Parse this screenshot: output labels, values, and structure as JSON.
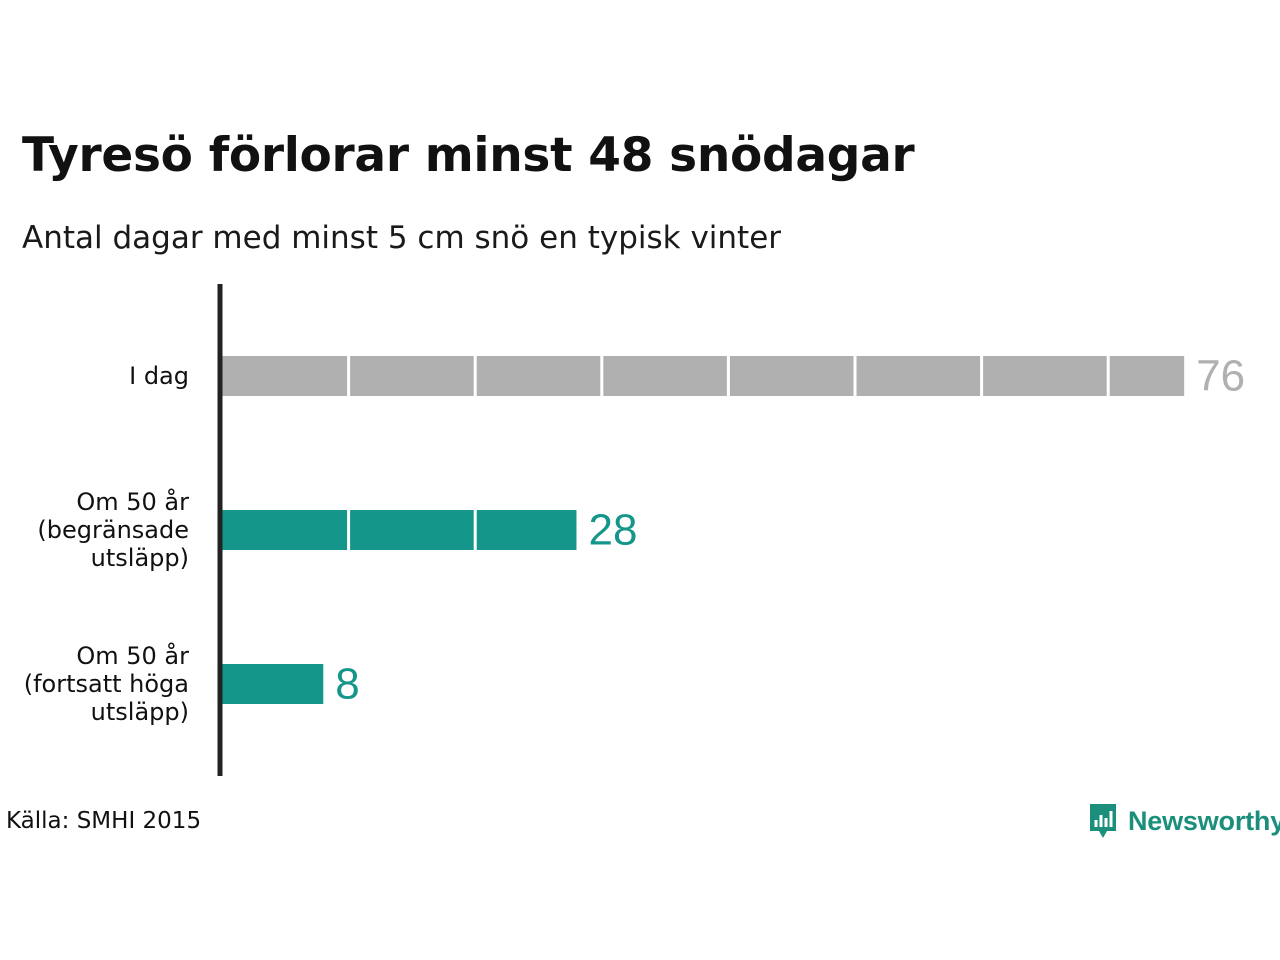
{
  "chart_data": {
    "type": "bar",
    "orientation": "horizontal",
    "title": "Tyresö förlorar minst 48 snödagar",
    "subtitle": "Antal dagar med minst 5 cm snö en typisk vinter",
    "categories": [
      [
        "I dag"
      ],
      [
        "Om 50 år",
        "(begränsade",
        "utsläpp)"
      ],
      [
        "Om 50 år",
        "(fortsatt höga",
        "utsläpp)"
      ]
    ],
    "values": [
      76,
      28,
      8
    ],
    "value_labels": [
      "76",
      "28",
      "8"
    ],
    "bar_colors": [
      "#b0b0b0",
      "#15968a",
      "#15968a"
    ],
    "label_colors": [
      "#b0b0b0",
      "#15968a",
      "#15968a"
    ],
    "segment_size": 10,
    "xlim": [
      0,
      80
    ],
    "grid": false,
    "legend": "none",
    "source": "Källa: SMHI 2015"
  },
  "brand": {
    "name": "Newsworthy",
    "icon": "newsworthy-logo-icon",
    "color": "#1b8f7c"
  }
}
